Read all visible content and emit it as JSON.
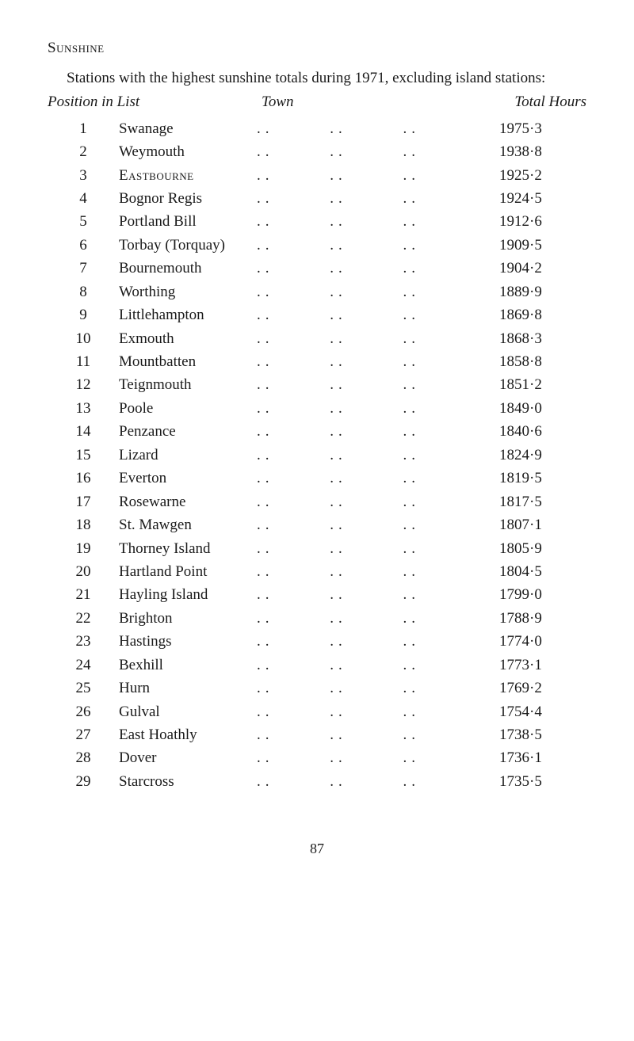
{
  "heading": "Sunshine",
  "intro": "Stations with the highest sunshine totals during 1971, excluding island stations:",
  "columns": {
    "position": "Position in List",
    "town": "Town",
    "hours": "Total Hours"
  },
  "rows": [
    {
      "pos": "1",
      "town": "Swanage",
      "smallcaps": false,
      "hours": "1975·3"
    },
    {
      "pos": "2",
      "town": "Weymouth",
      "smallcaps": false,
      "hours": "1938·8"
    },
    {
      "pos": "3",
      "town": "Eastbourne",
      "smallcaps": true,
      "hours": "1925·2"
    },
    {
      "pos": "4",
      "town": "Bognor Regis",
      "smallcaps": false,
      "hours": "1924·5"
    },
    {
      "pos": "5",
      "town": "Portland Bill",
      "smallcaps": false,
      "hours": "1912·6"
    },
    {
      "pos": "6",
      "town": "Torbay (Torquay)",
      "smallcaps": false,
      "hours": "1909·5"
    },
    {
      "pos": "7",
      "town": "Bournemouth",
      "smallcaps": false,
      "hours": "1904·2"
    },
    {
      "pos": "8",
      "town": "Worthing",
      "smallcaps": false,
      "hours": "1889·9"
    },
    {
      "pos": "9",
      "town": "Littlehampton",
      "smallcaps": false,
      "hours": "1869·8"
    },
    {
      "pos": "10",
      "town": "Exmouth",
      "smallcaps": false,
      "hours": "1868·3"
    },
    {
      "pos": "11",
      "town": "Mountbatten",
      "smallcaps": false,
      "hours": "1858·8"
    },
    {
      "pos": "12",
      "town": "Teignmouth",
      "smallcaps": false,
      "hours": "1851·2"
    },
    {
      "pos": "13",
      "town": "Poole",
      "smallcaps": false,
      "hours": "1849·0"
    },
    {
      "pos": "14",
      "town": "Penzance",
      "smallcaps": false,
      "hours": "1840·6"
    },
    {
      "pos": "15",
      "town": "Lizard",
      "smallcaps": false,
      "hours": "1824·9"
    },
    {
      "pos": "16",
      "town": "Everton",
      "smallcaps": false,
      "hours": "1819·5"
    },
    {
      "pos": "17",
      "town": "Rosewarne",
      "smallcaps": false,
      "hours": "1817·5"
    },
    {
      "pos": "18",
      "town": "St. Mawgen",
      "smallcaps": false,
      "hours": "1807·1"
    },
    {
      "pos": "19",
      "town": "Thorney Island",
      "smallcaps": false,
      "hours": "1805·9"
    },
    {
      "pos": "20",
      "town": "Hartland Point",
      "smallcaps": false,
      "hours": "1804·5"
    },
    {
      "pos": "21",
      "town": "Hayling Island",
      "smallcaps": false,
      "hours": "1799·0"
    },
    {
      "pos": "22",
      "town": "Brighton",
      "smallcaps": false,
      "hours": "1788·9"
    },
    {
      "pos": "23",
      "town": "Hastings",
      "smallcaps": false,
      "hours": "1774·0"
    },
    {
      "pos": "24",
      "town": "Bexhill",
      "smallcaps": false,
      "hours": "1773·1"
    },
    {
      "pos": "25",
      "town": "Hurn",
      "smallcaps": false,
      "hours": "1769·2"
    },
    {
      "pos": "26",
      "town": "Gulval",
      "smallcaps": false,
      "hours": "1754·4"
    },
    {
      "pos": "27",
      "town": "East Hoathly",
      "smallcaps": false,
      "hours": "1738·5"
    },
    {
      "pos": "28",
      "town": "Dover",
      "smallcaps": false,
      "hours": "1736·1"
    },
    {
      "pos": "29",
      "town": "Starcross",
      "smallcaps": false,
      "hours": "1735·5"
    }
  ],
  "leader": ".. .. ..",
  "pagenum": "87"
}
